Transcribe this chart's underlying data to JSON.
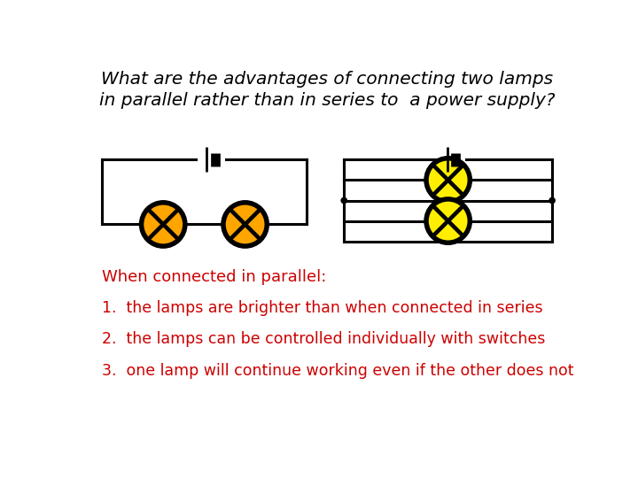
{
  "title_line1": "What are the advantages of connecting two lamps",
  "title_line2": "in parallel rather than in series to  a power supply?",
  "title_fontsize": 14.5,
  "title_color": "#000000",
  "title_style": "italic",
  "text_color": "#cc0000",
  "text_items": [
    "When connected in parallel:",
    "1.  the lamps are brighter than when connected in series",
    "2.  the lamps can be controlled individually with switches",
    "3.  one lamp will continue working even if the other does not"
  ],
  "lamp_color_series": "#FFA500",
  "lamp_color_parallel": "#FFEE00",
  "bg_color": "#ffffff",
  "line_color": "#000000",
  "line_width": 2.2
}
